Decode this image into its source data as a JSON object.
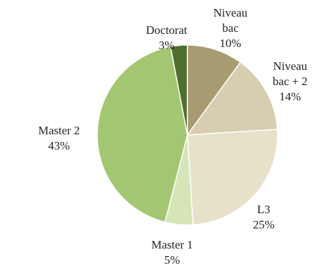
{
  "chart_data": {
    "type": "pie",
    "categories": [
      "Niveau bac",
      "Niveau bac + 2",
      "L3",
      "Master 1",
      "Master 2",
      "Doctorat"
    ],
    "values": [
      10,
      14,
      25,
      5,
      43,
      3
    ],
    "value_labels": [
      "10%",
      "14%",
      "25%",
      "5%",
      "43%",
      "3%"
    ],
    "colors": [
      "#a89b72",
      "#d7cdb1",
      "#e7e1ca",
      "#d5e5b8",
      "#a3c672",
      "#4f6f30"
    ]
  }
}
